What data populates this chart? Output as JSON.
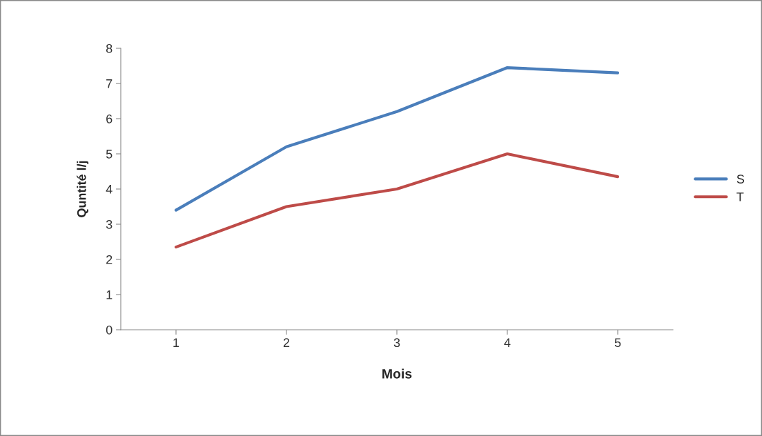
{
  "chart_data": {
    "type": "line",
    "xlabel": "Mois",
    "ylabel": "Quntité l/j",
    "categories": [
      "1",
      "2",
      "3",
      "4",
      "5"
    ],
    "series": [
      {
        "name": "S",
        "color": "#4a7ebb",
        "values": [
          3.4,
          5.2,
          6.2,
          7.45,
          7.3
        ]
      },
      {
        "name": "T",
        "color": "#be4b48",
        "values": [
          2.35,
          3.5,
          4.0,
          5.0,
          4.35
        ]
      }
    ],
    "ylim": [
      0,
      8
    ],
    "yticks": [
      0,
      1,
      2,
      3,
      4,
      5,
      6,
      7,
      8
    ],
    "grid": false,
    "legend": "right",
    "marker": "none",
    "line_style": "solid"
  }
}
